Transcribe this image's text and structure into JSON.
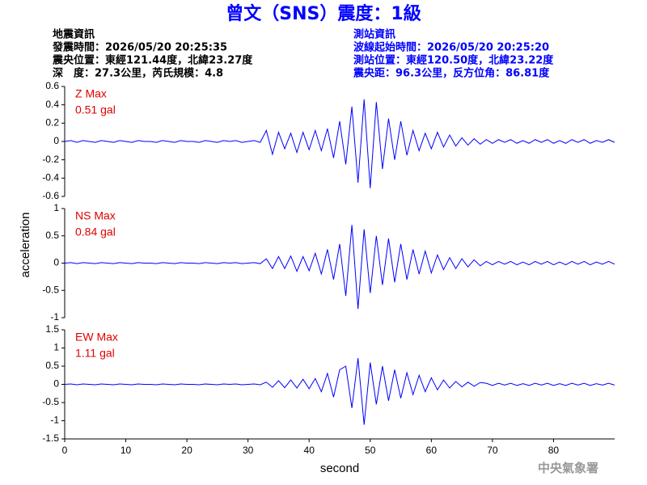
{
  "header": {
    "title": "曾文（SNS）震度：1級",
    "left": [
      "地震資訊",
      "發震時間：2026/05/20 20:25:35",
      "震央位置：東經121.44度，北緯23.27度",
      "深　度：27.3公里，芮氏規模：4.8"
    ],
    "right": [
      "測站資訊",
      "波線起始時間：2026/05/20 20:25:20",
      "測站位置：東經120.50度，北緯23.22度",
      "震央距：96.3公里，反方位角：86.81度"
    ]
  },
  "footer": "中央氣象署",
  "chart_data": [
    {
      "type": "line",
      "annotation": "Z Max",
      "max_label": "0.51 gal",
      "xlim": [
        0,
        90
      ],
      "ylim": [
        -0.6,
        0.6
      ],
      "yticks": [
        0.6,
        0.4,
        0.2,
        0,
        -0.2,
        -0.4,
        -0.6
      ],
      "x": [
        0,
        1,
        2,
        3,
        4,
        5,
        6,
        7,
        8,
        9,
        10,
        11,
        12,
        13,
        14,
        15,
        16,
        17,
        18,
        19,
        20,
        21,
        22,
        23,
        24,
        25,
        26,
        27,
        28,
        29,
        30,
        31,
        32,
        33,
        34,
        35,
        36,
        37,
        38,
        39,
        40,
        41,
        42,
        43,
        44,
        45,
        46,
        47,
        48,
        49,
        50,
        51,
        52,
        53,
        54,
        55,
        56,
        57,
        58,
        59,
        60,
        61,
        62,
        63,
        64,
        65,
        66,
        67,
        68,
        69,
        70,
        71,
        72,
        73,
        74,
        75,
        76,
        77,
        78,
        79,
        80,
        81,
        82,
        83,
        84,
        85,
        86,
        87,
        88,
        89,
        90
      ],
      "series": [
        {
          "color": "#0000ff",
          "values": [
            0,
            0.01,
            -0.01,
            0.01,
            0,
            -0.01,
            0.01,
            0,
            -0.01,
            0.01,
            0,
            -0.01,
            0.01,
            0,
            0,
            -0.01,
            0.01,
            0,
            -0.01,
            0.01,
            0,
            0,
            -0.01,
            0.01,
            0,
            -0.01,
            0.01,
            0,
            0.01,
            -0.01,
            0,
            0.01,
            -0.01,
            0.12,
            -0.14,
            0.1,
            -0.08,
            0.09,
            -0.12,
            0.1,
            -0.09,
            0.12,
            -0.1,
            0.14,
            -0.18,
            0.22,
            -0.25,
            0.38,
            -0.45,
            0.46,
            -0.51,
            0.43,
            -0.3,
            0.25,
            -0.2,
            0.22,
            -0.15,
            0.12,
            -0.1,
            0.09,
            -0.08,
            0.1,
            -0.06,
            0.07,
            -0.05,
            0.04,
            -0.04,
            0.03,
            -0.03,
            0.02,
            -0.02,
            0.02,
            -0.01,
            0.02,
            -0.02,
            0.01,
            -0.02,
            0.02,
            -0.01,
            0.02,
            -0.02,
            0.01,
            -0.02,
            0.02,
            -0.01,
            0.02,
            -0.02,
            0.01,
            -0.01,
            0.02,
            -0.01
          ]
        }
      ]
    },
    {
      "type": "line",
      "annotation": "NS Max",
      "max_label": "0.84 gal",
      "ylabel": "acceleration",
      "xlim": [
        0,
        90
      ],
      "ylim": [
        -1,
        1
      ],
      "yticks": [
        1,
        0.5,
        0,
        -0.5,
        -1
      ],
      "x": [
        0,
        1,
        2,
        3,
        4,
        5,
        6,
        7,
        8,
        9,
        10,
        11,
        12,
        13,
        14,
        15,
        16,
        17,
        18,
        19,
        20,
        21,
        22,
        23,
        24,
        25,
        26,
        27,
        28,
        29,
        30,
        31,
        32,
        33,
        34,
        35,
        36,
        37,
        38,
        39,
        40,
        41,
        42,
        43,
        44,
        45,
        46,
        47,
        48,
        49,
        50,
        51,
        52,
        53,
        54,
        55,
        56,
        57,
        58,
        59,
        60,
        61,
        62,
        63,
        64,
        65,
        66,
        67,
        68,
        69,
        70,
        71,
        72,
        73,
        74,
        75,
        76,
        77,
        78,
        79,
        80,
        81,
        82,
        83,
        84,
        85,
        86,
        87,
        88,
        89,
        90
      ],
      "series": [
        {
          "color": "#0000ff",
          "values": [
            0,
            0.01,
            -0.01,
            0.01,
            0,
            -0.01,
            0.01,
            0,
            -0.01,
            0.01,
            0,
            -0.01,
            0.01,
            0,
            0,
            -0.01,
            0.01,
            0,
            -0.01,
            0.01,
            0,
            0,
            -0.01,
            0.01,
            0,
            -0.01,
            0.01,
            0,
            0.01,
            -0.01,
            0,
            0.01,
            -0.01,
            0.08,
            -0.1,
            0.12,
            -0.1,
            0.13,
            -0.15,
            0.12,
            -0.14,
            0.18,
            -0.2,
            0.25,
            -0.3,
            0.35,
            -0.6,
            0.7,
            -0.84,
            0.62,
            -0.55,
            0.5,
            -0.4,
            0.45,
            -0.35,
            0.35,
            -0.3,
            0.25,
            -0.2,
            0.22,
            -0.18,
            0.15,
            -0.12,
            0.1,
            -0.1,
            0.08,
            -0.07,
            0.06,
            -0.05,
            0.03,
            -0.03,
            0.03,
            -0.02,
            0.03,
            -0.03,
            0.02,
            -0.03,
            0.03,
            -0.02,
            0.03,
            -0.03,
            0.02,
            -0.03,
            0.03,
            -0.02,
            0.03,
            -0.03,
            0.02,
            -0.02,
            0.03,
            -0.02
          ]
        }
      ]
    },
    {
      "type": "line",
      "annotation": "EW Max",
      "max_label": "1.11 gal",
      "xlabel": "second",
      "xlim": [
        0,
        90
      ],
      "ylim": [
        -1.5,
        1.5
      ],
      "yticks": [
        1.5,
        1,
        0.5,
        0,
        -0.5,
        -1,
        -1.5
      ],
      "xticks": [
        0,
        10,
        20,
        30,
        40,
        50,
        60,
        70,
        80
      ],
      "x": [
        0,
        1,
        2,
        3,
        4,
        5,
        6,
        7,
        8,
        9,
        10,
        11,
        12,
        13,
        14,
        15,
        16,
        17,
        18,
        19,
        20,
        21,
        22,
        23,
        24,
        25,
        26,
        27,
        28,
        29,
        30,
        31,
        32,
        33,
        34,
        35,
        36,
        37,
        38,
        39,
        40,
        41,
        42,
        43,
        44,
        45,
        46,
        47,
        48,
        49,
        50,
        51,
        52,
        53,
        54,
        55,
        56,
        57,
        58,
        59,
        60,
        61,
        62,
        63,
        64,
        65,
        66,
        67,
        68,
        69,
        70,
        71,
        72,
        73,
        74,
        75,
        76,
        77,
        78,
        79,
        80,
        81,
        82,
        83,
        84,
        85,
        86,
        87,
        88,
        89,
        90
      ],
      "series": [
        {
          "color": "#0000ff",
          "values": [
            0,
            0.01,
            -0.01,
            0.01,
            0,
            -0.01,
            0.01,
            0,
            -0.01,
            0.01,
            0,
            -0.01,
            0.01,
            0,
            0,
            -0.01,
            0.01,
            0,
            -0.01,
            0.01,
            0,
            0,
            -0.01,
            0.01,
            0,
            -0.01,
            0.01,
            0,
            0.01,
            -0.01,
            0,
            0.01,
            -0.01,
            0.06,
            -0.08,
            0.1,
            -0.09,
            0.12,
            -0.1,
            0.14,
            -0.12,
            0.16,
            -0.2,
            0.3,
            -0.35,
            0.4,
            0.5,
            -0.65,
            0.72,
            -1.11,
            0.6,
            -0.55,
            0.5,
            -0.45,
            0.4,
            -0.38,
            0.32,
            -0.28,
            0.25,
            -0.2,
            0.18,
            -0.15,
            0.12,
            -0.1,
            0.08,
            -0.07,
            0.06,
            -0.05,
            0.05,
            0.03,
            -0.03,
            0.03,
            -0.02,
            0.03,
            -0.03,
            0.02,
            -0.03,
            0.03,
            -0.02,
            0.03,
            -0.03,
            0.02,
            -0.03,
            0.03,
            -0.02,
            0.03,
            -0.03,
            0.02,
            -0.02,
            0.03,
            -0.02
          ]
        }
      ]
    }
  ]
}
